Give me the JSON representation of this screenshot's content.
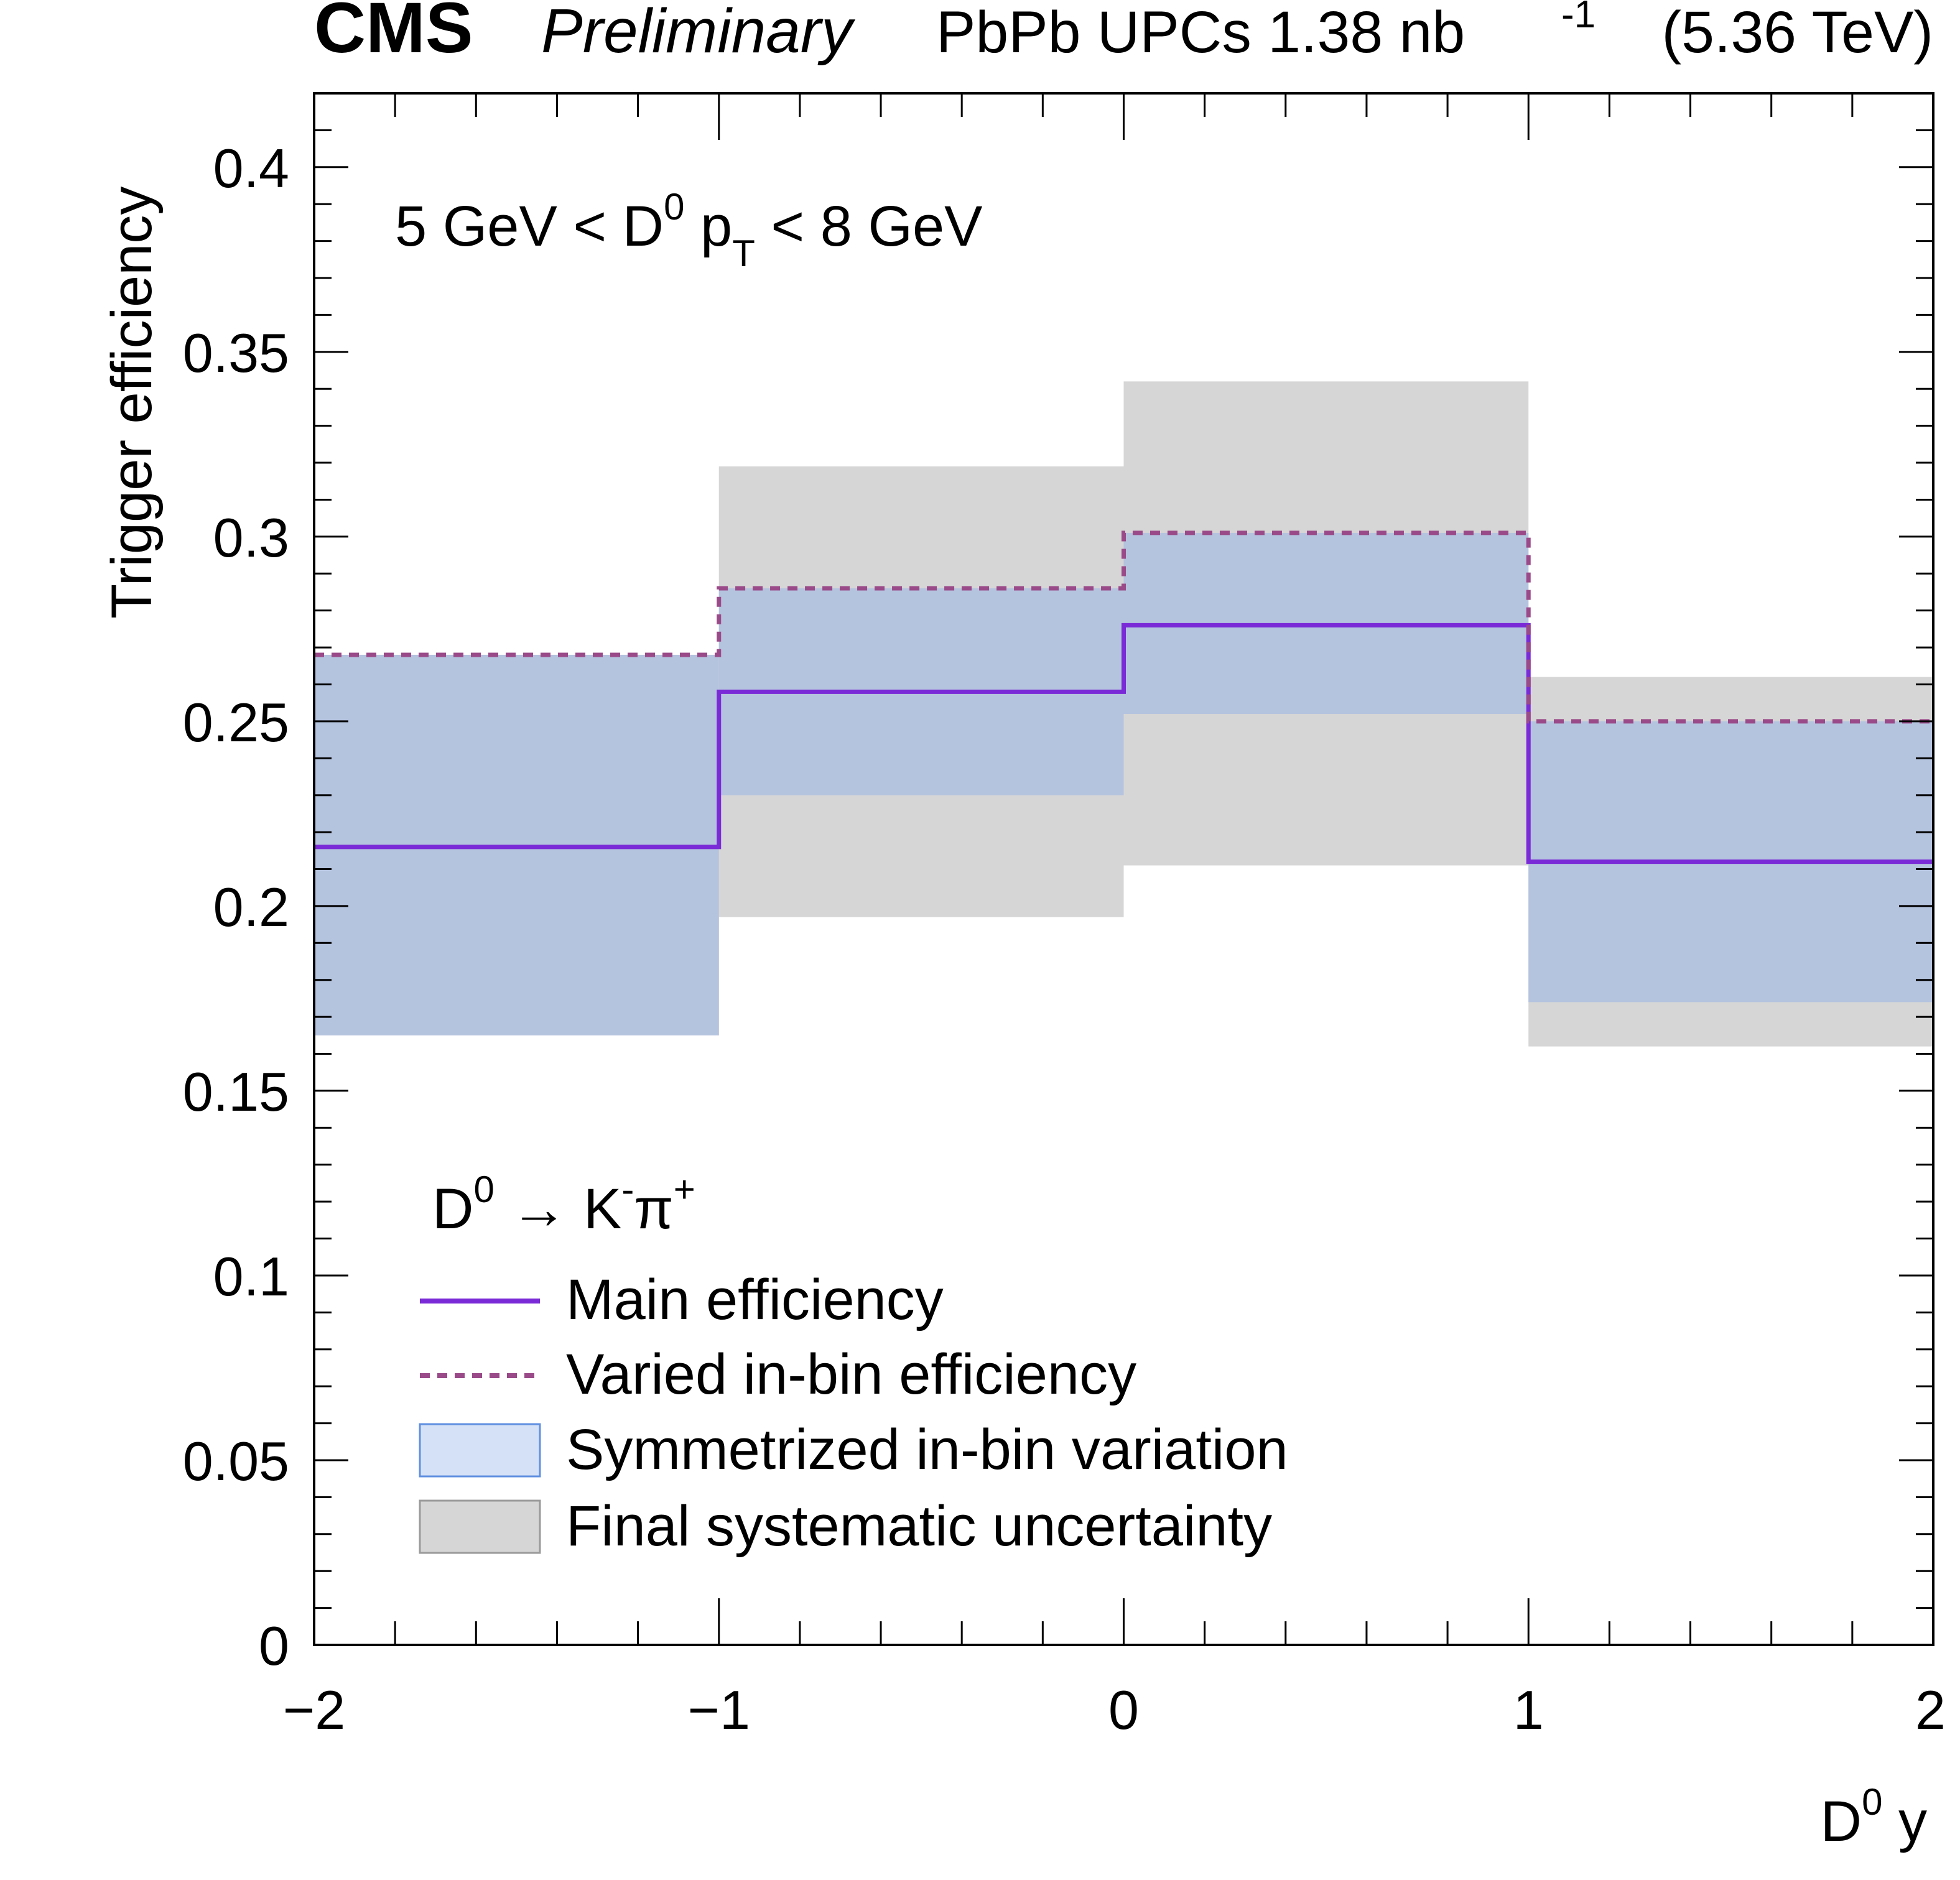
{
  "header": {
    "experiment": "CMS",
    "status": "Preliminary",
    "dataset_prefix": "PbPb UPCs 1.38 nb",
    "lumi_exponent": "-1",
    "energy": "(5.36 TeV)"
  },
  "annotation": {
    "kinematic_left": "5 GeV < D",
    "kinematic_sup": "0",
    "kinematic_p": " p",
    "kinematic_sub": "T",
    "kinematic_right": " < 8 GeV"
  },
  "chart_data": {
    "type": "step",
    "title": "CMS Preliminary PbPb UPCs 1.38 nb^-1 (5.36 TeV)",
    "xlabel": "D0 y",
    "ylabel": "Trigger efficiency",
    "xlim": [
      -2,
      2
    ],
    "ylim": [
      0,
      0.42
    ],
    "grid": false,
    "bin_edges": [
      -2,
      -1,
      0,
      1,
      2
    ],
    "series": [
      {
        "name": "Main efficiency",
        "style": "solid",
        "color": "#7a2ad6",
        "values": [
          0.216,
          0.258,
          0.276,
          0.212
        ]
      },
      {
        "name": "Varied in-bin efficiency",
        "style": "dashed",
        "color": "#9a4a88",
        "values": [
          0.268,
          0.286,
          0.301,
          0.25
        ]
      }
    ],
    "bands": [
      {
        "name": "Final systematic uncertainty",
        "color": "#d6d6d6",
        "low": [
          0.165,
          0.197,
          0.211,
          0.162
        ],
        "high": [
          0.268,
          0.319,
          0.342,
          0.262
        ]
      },
      {
        "name": "Symmetrized in-bin variation",
        "color": "#b4c3de",
        "low": [
          0.165,
          0.23,
          0.252,
          0.174
        ],
        "high": [
          0.268,
          0.286,
          0.301,
          0.25
        ]
      }
    ],
    "yticks": [
      "0",
      "0.05",
      "0.1",
      "0.15",
      "0.2",
      "0.25",
      "0.3",
      "0.35",
      "0.4"
    ],
    "xticks": [
      "−2",
      "−1",
      "0",
      "1",
      "2"
    ],
    "legend": {
      "placement": "bottom-left",
      "title_main": "D",
      "title_sup": "0",
      "title_arrow": " → K",
      "title_minus": "-",
      "title_pi": "π",
      "title_plus": "+",
      "entries": [
        "Main efficiency",
        "Varied in-bin efficiency",
        "Symmetrized in-bin variation",
        "Final systematic uncertainty"
      ]
    }
  }
}
